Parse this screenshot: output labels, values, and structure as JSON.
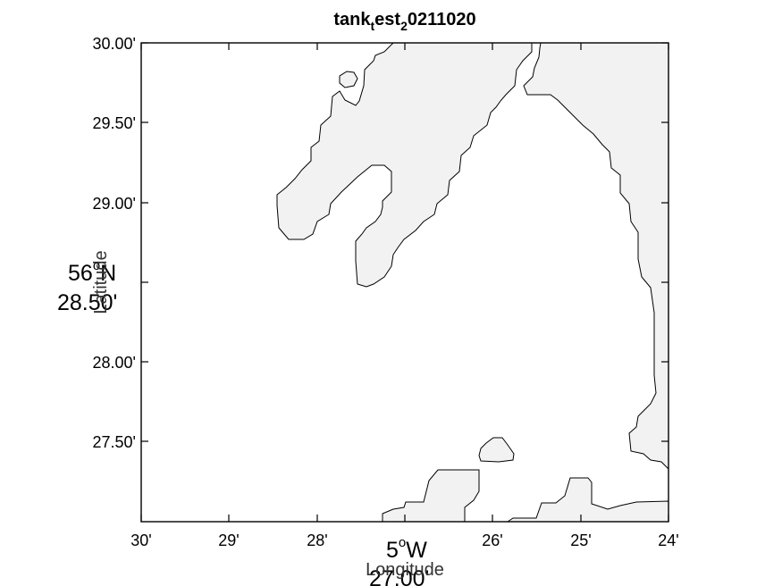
{
  "map": {
    "title": {
      "main_1": "tank",
      "sub_1": "t",
      "main_2": "est",
      "sub_2": "2",
      "main_3": "0211020"
    },
    "lat_ticks": [
      "30.00'",
      "29.50'",
      "29.00'",
      "28.50'",
      "28.00'",
      "27.50'"
    ],
    "lon_ticks": [
      "30'",
      "29'",
      "28'",
      "27'",
      "26'",
      "25'",
      "24'"
    ],
    "lat_center": {
      "degrees": "56",
      "hemisphere": "N",
      "minutes": "28.50'"
    },
    "lon_center": {
      "degrees": "5",
      "hemisphere": "W",
      "minutes": "27.00'"
    },
    "degree_symbol": "o",
    "ylabel": "Latitude",
    "xlabel": "Longitude",
    "colors": {
      "land": "#f2f2f2",
      "coastline": "#000000",
      "water": "#ffffff"
    }
  }
}
